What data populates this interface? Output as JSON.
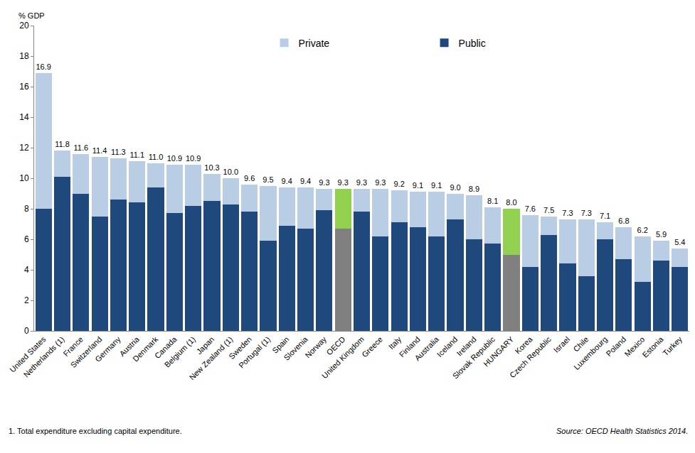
{
  "chart_data": {
    "type": "bar",
    "stacked": true,
    "y_label": "% GDP",
    "categories": [
      "United States",
      "Netherlands (1)",
      "France",
      "Switzerland",
      "Germany",
      "Austria",
      "Denmark",
      "Canada",
      "Belgium (1)",
      "Japan",
      "New Zealand (1)",
      "Sweden",
      "Portugal (1)",
      "Spain",
      "Slovenia",
      "Norway",
      "OECD",
      "United Kingdom",
      "Greece",
      "Italy",
      "Finland",
      "Australia",
      "Iceland",
      "Ireland",
      "Slovak Republic",
      "HUNGARY",
      "Korea",
      "Czech Republic",
      "Israel",
      "Chile",
      "Luxembourg",
      "Poland",
      "Mexico",
      "Estonia",
      "Turkey"
    ],
    "series": [
      {
        "name": "Public",
        "color": "#1f497d",
        "colors": [
          "#1f497d",
          "#1f497d",
          "#1f497d",
          "#1f497d",
          "#1f497d",
          "#1f497d",
          "#1f497d",
          "#1f497d",
          "#1f497d",
          "#1f497d",
          "#1f497d",
          "#1f497d",
          "#1f497d",
          "#1f497d",
          "#1f497d",
          "#1f497d",
          "#808080",
          "#1f497d",
          "#1f497d",
          "#1f497d",
          "#1f497d",
          "#1f497d",
          "#1f497d",
          "#1f497d",
          "#1f497d",
          "#808080",
          "#1f497d",
          "#1f497d",
          "#1f497d",
          "#1f497d",
          "#1f497d",
          "#1f497d",
          "#1f497d",
          "#1f497d",
          "#1f497d"
        ],
        "values": [
          8.0,
          10.1,
          9.0,
          7.5,
          8.6,
          8.4,
          9.4,
          7.7,
          8.2,
          8.5,
          8.3,
          7.8,
          5.9,
          6.9,
          6.7,
          7.9,
          6.7,
          7.8,
          6.2,
          7.1,
          6.8,
          6.2,
          7.3,
          6.0,
          5.7,
          5.0,
          4.2,
          6.3,
          4.4,
          3.6,
          6.0,
          4.7,
          3.2,
          4.6,
          4.2
        ]
      },
      {
        "name": "Private",
        "color": "#b9cde5",
        "colors": [
          "#b9cde5",
          "#b9cde5",
          "#b9cde5",
          "#b9cde5",
          "#b9cde5",
          "#b9cde5",
          "#b9cde5",
          "#b9cde5",
          "#b9cde5",
          "#b9cde5",
          "#b9cde5",
          "#b9cde5",
          "#b9cde5",
          "#b9cde5",
          "#b9cde5",
          "#b9cde5",
          "#92d050",
          "#b9cde5",
          "#b9cde5",
          "#b9cde5",
          "#b9cde5",
          "#b9cde5",
          "#b9cde5",
          "#b9cde5",
          "#b9cde5",
          "#92d050",
          "#b9cde5",
          "#b9cde5",
          "#b9cde5",
          "#b9cde5",
          "#b9cde5",
          "#b9cde5",
          "#b9cde5",
          "#b9cde5",
          "#b9cde5"
        ],
        "values": [
          8.9,
          1.7,
          2.6,
          3.9,
          2.7,
          2.7,
          1.6,
          3.2,
          2.7,
          1.8,
          1.7,
          1.8,
          3.6,
          2.5,
          2.7,
          1.4,
          2.6,
          1.5,
          3.1,
          2.1,
          2.3,
          2.9,
          1.7,
          2.9,
          2.4,
          3.0,
          3.4,
          1.2,
          2.9,
          3.7,
          1.1,
          2.1,
          3.0,
          1.3,
          1.2
        ]
      }
    ],
    "totals": [
      16.9,
      11.8,
      11.6,
      11.4,
      11.3,
      11.1,
      11.0,
      10.9,
      10.9,
      10.3,
      10.0,
      9.6,
      9.5,
      9.4,
      9.4,
      9.3,
      9.3,
      9.3,
      9.3,
      9.2,
      9.1,
      9.1,
      9.0,
      8.9,
      8.1,
      8.0,
      7.6,
      7.5,
      7.3,
      7.3,
      7.1,
      6.8,
      6.2,
      5.9,
      5.4
    ],
    "total_labels": [
      "16.9",
      "11.8",
      "11.6",
      "11.4",
      "11.3",
      "11.1",
      "11.0",
      "10.9",
      "10.9",
      "10.3",
      "10.0",
      "9.6",
      "9.5",
      "9.4",
      "9.4",
      "9.3",
      "9.3",
      "9.3",
      "9.3",
      "9.2",
      "9.1",
      "9.1",
      "9.0",
      "8.9",
      "8.1",
      "8.0",
      "7.6",
      "7.5",
      "7.3",
      "7.3",
      "7.1",
      "6.8",
      "6.2",
      "5.9",
      "5.4"
    ],
    "ylim": [
      0,
      20
    ],
    "yticks": [
      0,
      2,
      4,
      6,
      8,
      10,
      12,
      14,
      16,
      18,
      20
    ],
    "grid": false,
    "legend": "top",
    "footnote": "1. Total expenditure excluding capital expenditure.",
    "source": "Source: OECD Health Statistics 2014."
  }
}
